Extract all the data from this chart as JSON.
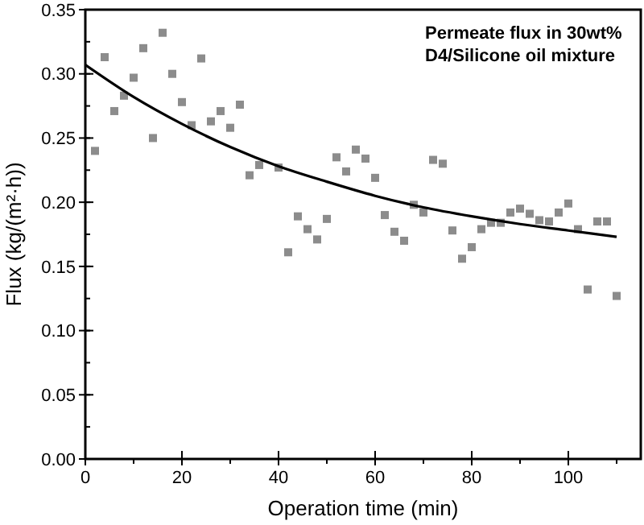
{
  "chart_data": {
    "type": "scatter",
    "xlabel": "Operation time (min)",
    "ylabel": "Flux (kg/(m²·h))",
    "annotations": [
      "Permeate flux in 30wt%\nD4/Silicone oil mixture"
    ],
    "xlim": [
      0,
      115
    ],
    "xticks": [
      0,
      20,
      40,
      60,
      80,
      100
    ],
    "ylim": [
      0,
      0.35
    ],
    "yticks": [
      {
        "value": 0,
        "label": "0.00"
      },
      {
        "value": 0.05,
        "label": "0.05"
      },
      {
        "value": 0.1,
        "label": "0.10"
      },
      {
        "value": 0.15,
        "label": "0.15"
      },
      {
        "value": 0.2,
        "label": "0.20"
      },
      {
        "value": 0.25,
        "label": "0.25"
      },
      {
        "value": 0.3,
        "label": "0.30"
      },
      {
        "value": 0.35,
        "label": "0.35"
      }
    ],
    "grid": false,
    "marker": "square",
    "series": [
      {
        "color": "#8c8c8c",
        "x": [
          2,
          4,
          6,
          8,
          10,
          12,
          14,
          16,
          18,
          20,
          22,
          24,
          26,
          28,
          30,
          32,
          34,
          36,
          40,
          42,
          44,
          46,
          48,
          50,
          52,
          54,
          56,
          58,
          60,
          62,
          64,
          66,
          68,
          70,
          72,
          74,
          76,
          78,
          80,
          82,
          84,
          86,
          88,
          90,
          92,
          94,
          96,
          98,
          100,
          102,
          104,
          106,
          108,
          110
        ],
        "values": [
          0.24,
          0.313,
          0.271,
          0.283,
          0.297,
          0.32,
          0.25,
          0.332,
          0.3,
          0.278,
          0.26,
          0.312,
          0.263,
          0.271,
          0.258,
          0.276,
          0.221,
          0.229,
          0.227,
          0.161,
          0.189,
          0.179,
          0.171,
          0.187,
          0.235,
          0.224,
          0.241,
          0.234,
          0.219,
          0.19,
          0.177,
          0.17,
          0.198,
          0.192,
          0.233,
          0.23,
          0.178,
          0.156,
          0.165,
          0.179,
          0.184,
          0.184,
          0.192,
          0.195,
          0.191,
          0.186,
          0.185,
          0.192,
          0.199,
          0.179,
          0.132,
          0.185,
          0.185,
          0.127
        ]
      },
      {
        "type": "line",
        "color": "#000000",
        "marker": "none",
        "x": [
          0,
          10,
          20,
          30,
          40,
          50,
          60,
          70,
          80,
          90,
          100,
          110
        ],
        "values": [
          0.307,
          0.282,
          0.261,
          0.243,
          0.228,
          0.216,
          0.205,
          0.196,
          0.189,
          0.183,
          0.178,
          0.173
        ]
      }
    ]
  }
}
